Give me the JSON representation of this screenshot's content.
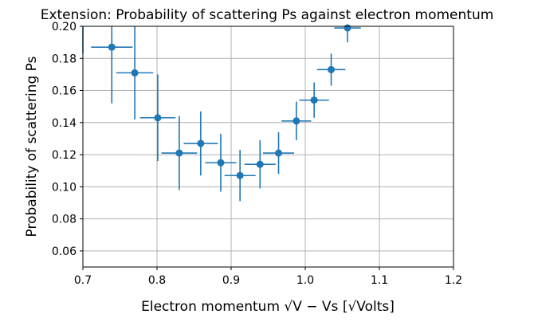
{
  "chart_data": {
    "type": "scatter",
    "title": "Extension: Probability of scattering Ps against electron momentum",
    "xlabel": "Electron momentum √V − Vs [√Volts]",
    "ylabel": "Probability of scattering Ps",
    "xlim": [
      0.7,
      1.2
    ],
    "ylim": [
      0.05,
      0.2
    ],
    "xticks": [
      "0.7",
      "0.8",
      "0.9",
      "1.0",
      "1.1",
      "1.2"
    ],
    "yticks": [
      "0.06",
      "0.08",
      "0.10",
      "0.12",
      "0.14",
      "0.16",
      "0.18",
      "0.20"
    ],
    "grid": true,
    "color": "#1f77b4",
    "points": [
      {
        "x": 0.7,
        "y": 0.2,
        "xerr": 0.0,
        "yerr": 0.017
      },
      {
        "x": 0.739,
        "y": 0.187,
        "xerr": 0.028,
        "yerr": 0.035
      },
      {
        "x": 0.77,
        "y": 0.171,
        "xerr": 0.025,
        "yerr": 0.029
      },
      {
        "x": 0.801,
        "y": 0.143,
        "xerr": 0.024,
        "yerr": 0.027
      },
      {
        "x": 0.83,
        "y": 0.121,
        "xerr": 0.024,
        "yerr": 0.023
      },
      {
        "x": 0.859,
        "y": 0.127,
        "xerr": 0.023,
        "yerr": 0.02
      },
      {
        "x": 0.886,
        "y": 0.115,
        "xerr": 0.021,
        "yerr": 0.018
      },
      {
        "x": 0.912,
        "y": 0.107,
        "xerr": 0.021,
        "yerr": 0.016
      },
      {
        "x": 0.939,
        "y": 0.114,
        "xerr": 0.021,
        "yerr": 0.015
      },
      {
        "x": 0.964,
        "y": 0.121,
        "xerr": 0.021,
        "yerr": 0.013
      },
      {
        "x": 0.988,
        "y": 0.141,
        "xerr": 0.02,
        "yerr": 0.012
      },
      {
        "x": 1.012,
        "y": 0.154,
        "xerr": 0.02,
        "yerr": 0.011
      },
      {
        "x": 1.035,
        "y": 0.173,
        "xerr": 0.019,
        "yerr": 0.01
      },
      {
        "x": 1.057,
        "y": 0.199,
        "xerr": 0.018,
        "yerr": 0.009
      }
    ]
  }
}
